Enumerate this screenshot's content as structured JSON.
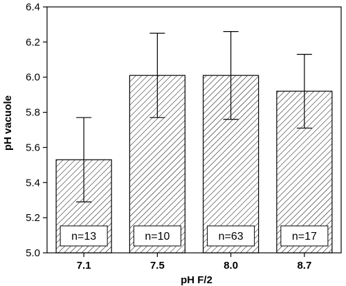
{
  "chart_data": {
    "type": "bar",
    "xlabel": "pH F/2",
    "ylabel": "pH vacuole",
    "ylim": [
      5.0,
      6.4
    ],
    "yticks": [
      "5.0",
      "5.2",
      "5.4",
      "5.6",
      "5.8",
      "6.0",
      "6.2",
      "6.4"
    ],
    "categories": [
      "7.1",
      "7.5",
      "8.0",
      "8.7"
    ],
    "values": [
      5.53,
      6.01,
      6.01,
      5.92
    ],
    "error_low": [
      5.29,
      5.77,
      5.76,
      5.71
    ],
    "error_high": [
      5.77,
      6.25,
      6.26,
      6.13
    ],
    "n_labels": [
      "n=13",
      "n=10",
      "n=63",
      "n=17"
    ],
    "bar_fill": "hatched",
    "grid": false
  }
}
